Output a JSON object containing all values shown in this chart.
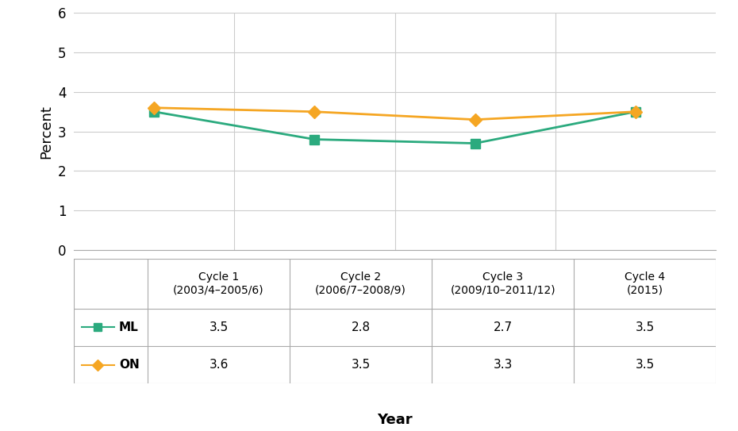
{
  "x_positions": [
    0,
    1,
    2,
    3
  ],
  "x_tick_labels_line1": [
    "Cycle 1",
    "Cycle 2",
    "Cycle 3",
    "Cycle 4"
  ],
  "x_tick_labels_line2": [
    "(2003/4–2005/6)",
    "(2006/7–2008/9)",
    "(2009/10–2011/12)",
    "(2015)"
  ],
  "ml_values": [
    3.5,
    2.8,
    2.7,
    3.5
  ],
  "on_values": [
    3.6,
    3.5,
    3.3,
    3.5
  ],
  "ml_color": "#2baa7e",
  "on_color": "#f5a623",
  "ylabel": "Percent",
  "xlabel": "Year",
  "ylim": [
    0,
    6
  ],
  "yticks": [
    0,
    1,
    2,
    3,
    4,
    5,
    6
  ],
  "table_ml_values": [
    "3.5",
    "2.8",
    "2.7",
    "3.5"
  ],
  "table_on_values": [
    "3.6",
    "3.5",
    "3.3",
    "3.5"
  ],
  "ml_label": "ML",
  "on_label": "ON",
  "bg_color": "#ffffff",
  "grid_color": "#cccccc",
  "line_color": "#aaaaaa",
  "line_width": 2.0,
  "marker_size": 8
}
